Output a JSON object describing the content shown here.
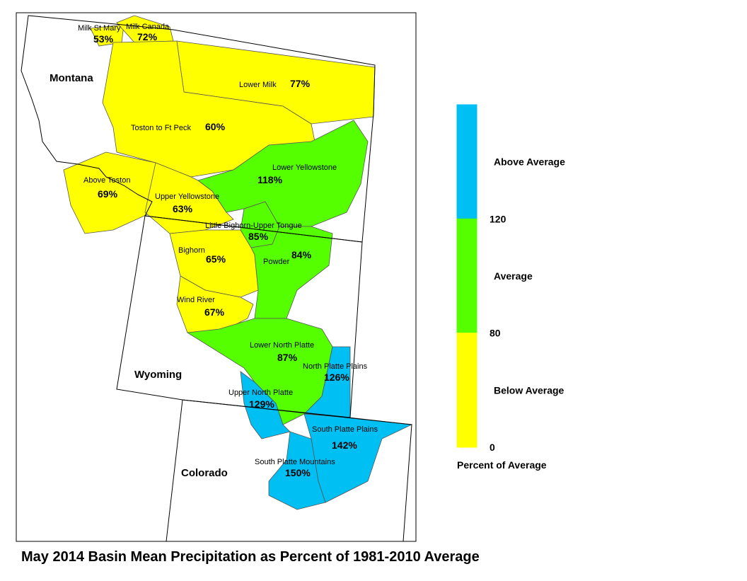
{
  "title": "May 2014 Basin Mean Precipitation as Percent of 1981-2010 Average",
  "states": [
    "Montana",
    "Wyoming",
    "Colorado"
  ],
  "basins": [
    {
      "name": "Milk St Mary",
      "label": "53%",
      "color": "#ffff00"
    },
    {
      "name": "Milk Canada",
      "label": "72%",
      "color": "#ffff00"
    },
    {
      "name": "Lower Milk",
      "label": "77%",
      "color": "#ffff00"
    },
    {
      "name": "Toston to Ft Peck",
      "label": "60%",
      "color": "#ffff00"
    },
    {
      "name": "Above Toston",
      "label": "69%",
      "color": "#ffff00"
    },
    {
      "name": "Upper Yellowstone",
      "label": "63%",
      "color": "#ffff00"
    },
    {
      "name": "Lower Yellowstone",
      "label": "118%",
      "color": "#55ff00"
    },
    {
      "name": "Little Bighorn-Upper Tongue",
      "label": "85%",
      "color": "#55ff00"
    },
    {
      "name": "Bighorn",
      "label": "65%",
      "color": "#ffff00"
    },
    {
      "name": "Powder",
      "label": "84%",
      "color": "#55ff00"
    },
    {
      "name": "Wind River",
      "label": "67%",
      "color": "#ffff00"
    },
    {
      "name": "Lower North Platte",
      "label": "87%",
      "color": "#55ff00"
    },
    {
      "name": "North Platte Plains",
      "label": "126%",
      "color": "#00bff3"
    },
    {
      "name": "Upper North Platte",
      "label": "129%",
      "color": "#00bff3"
    },
    {
      "name": "South Platte Plains",
      "label": "142%",
      "color": "#00bff3"
    },
    {
      "name": "South Platte Mountains",
      "label": "150%",
      "color": "#00bff3"
    }
  ],
  "legend": {
    "title": "Percent of Average",
    "classes": [
      {
        "label": "Above Average",
        "color": "#00bff3"
      },
      {
        "label": "Average",
        "color": "#55ff00"
      },
      {
        "label": "Below Average",
        "color": "#ffff00"
      }
    ],
    "breaks": [
      120,
      80,
      0
    ]
  }
}
